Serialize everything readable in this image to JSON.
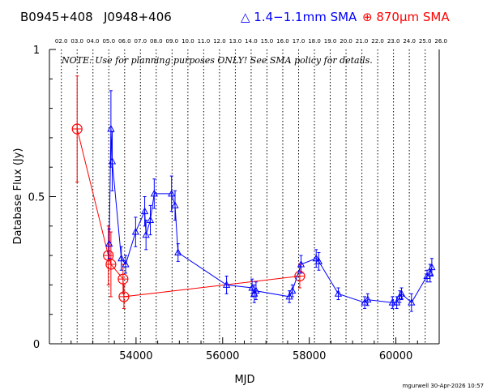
{
  "header": {
    "source1": "B0945+408",
    "source2": "J0948+406",
    "legend_blue_prefix": "△ 1.4−1.1mm SMA",
    "legend_red_prefix": "⊕ 870",
    "legend_red_mu": "μ",
    "legend_red_suffix": "m SMA"
  },
  "note": "NOTE: Use for planning purposes ONLY!  See SMA policy for details.",
  "credit": "mgurwell 30-Apr-2026 10:57",
  "colors": {
    "blue": "#0000ff",
    "red": "#ff0000",
    "axis": "#000000"
  },
  "chart_data": {
    "type": "scatter",
    "xlabel": "MJD",
    "ylabel": "Database Flux (Jy)",
    "xlim": [
      52000,
      61000
    ],
    "ylim": [
      0,
      1
    ],
    "x_ticks": [
      54000,
      56000,
      58000,
      60000
    ],
    "x_tick_labels": [
      "54000",
      "56000",
      "58000",
      "60000"
    ],
    "y_ticks": [
      0,
      0.5,
      1
    ],
    "y_tick_labels": [
      "0",
      "0.5",
      "1"
    ],
    "year_lines": [
      {
        "label": "02.0",
        "x": 52275
      },
      {
        "label": "03.0",
        "x": 52640
      },
      {
        "label": "04.0",
        "x": 53005
      },
      {
        "label": "05.0",
        "x": 53371
      },
      {
        "label": "06.0",
        "x": 53736
      },
      {
        "label": "07.0",
        "x": 54101
      },
      {
        "label": "08.0",
        "x": 54466
      },
      {
        "label": "09.0",
        "x": 54832
      },
      {
        "label": "10.0",
        "x": 55197
      },
      {
        "label": "11.0",
        "x": 55562
      },
      {
        "label": "12.0",
        "x": 55927
      },
      {
        "label": "13.0",
        "x": 56293
      },
      {
        "label": "14.0",
        "x": 56658
      },
      {
        "label": "15.0",
        "x": 57023
      },
      {
        "label": "16.0",
        "x": 57388
      },
      {
        "label": "17.0",
        "x": 57754
      },
      {
        "label": "18.0",
        "x": 58119
      },
      {
        "label": "19.0",
        "x": 58484
      },
      {
        "label": "20.0",
        "x": 58849
      },
      {
        "label": "21.0",
        "x": 59215
      },
      {
        "label": "22.0",
        "x": 59580
      },
      {
        "label": "23.0",
        "x": 59945
      },
      {
        "label": "24.0",
        "x": 60310
      },
      {
        "label": "25.0",
        "x": 60676
      },
      {
        "label": "26.0",
        "x": 61041
      }
    ],
    "series": [
      {
        "name": "1.4−1.1mm SMA",
        "color": "#0000ff",
        "marker": "triangle",
        "points": [
          {
            "x": 53380,
            "y": 0.34,
            "err": 0.05
          },
          {
            "x": 53420,
            "y": 0.73,
            "err": 0.13
          },
          {
            "x": 53450,
            "y": 0.62,
            "err": 0.1
          },
          {
            "x": 53660,
            "y": 0.29,
            "err": 0.04
          },
          {
            "x": 53760,
            "y": 0.27,
            "err": 0.03
          },
          {
            "x": 53990,
            "y": 0.38,
            "err": 0.05
          },
          {
            "x": 54200,
            "y": 0.45,
            "err": 0.05
          },
          {
            "x": 54230,
            "y": 0.37,
            "err": 0.05
          },
          {
            "x": 54330,
            "y": 0.42,
            "err": 0.05
          },
          {
            "x": 54420,
            "y": 0.51,
            "err": 0.05
          },
          {
            "x": 54820,
            "y": 0.51,
            "err": 0.06
          },
          {
            "x": 54900,
            "y": 0.47,
            "err": 0.05
          },
          {
            "x": 54970,
            "y": 0.31,
            "err": 0.03
          },
          {
            "x": 56090,
            "y": 0.2,
            "err": 0.03
          },
          {
            "x": 56680,
            "y": 0.19,
            "err": 0.03
          },
          {
            "x": 56730,
            "y": 0.17,
            "err": 0.03
          },
          {
            "x": 56770,
            "y": 0.18,
            "err": 0.03
          },
          {
            "x": 57540,
            "y": 0.16,
            "err": 0.02
          },
          {
            "x": 57610,
            "y": 0.18,
            "err": 0.02
          },
          {
            "x": 57810,
            "y": 0.27,
            "err": 0.03
          },
          {
            "x": 58160,
            "y": 0.29,
            "err": 0.03
          },
          {
            "x": 58220,
            "y": 0.28,
            "err": 0.03
          },
          {
            "x": 58670,
            "y": 0.17,
            "err": 0.02
          },
          {
            "x": 59280,
            "y": 0.14,
            "err": 0.02
          },
          {
            "x": 59350,
            "y": 0.15,
            "err": 0.02
          },
          {
            "x": 59920,
            "y": 0.14,
            "err": 0.02
          },
          {
            "x": 60020,
            "y": 0.14,
            "err": 0.02
          },
          {
            "x": 60090,
            "y": 0.16,
            "err": 0.02
          },
          {
            "x": 60130,
            "y": 0.17,
            "err": 0.02
          },
          {
            "x": 60360,
            "y": 0.14,
            "err": 0.03
          },
          {
            "x": 60720,
            "y": 0.23,
            "err": 0.02
          },
          {
            "x": 60790,
            "y": 0.24,
            "err": 0.03
          },
          {
            "x": 60830,
            "y": 0.26,
            "err": 0.03
          }
        ]
      },
      {
        "name": "870μm SMA",
        "color": "#ff0000",
        "marker": "circle-plus",
        "points": [
          {
            "x": 52640,
            "y": 0.73,
            "err": 0.18
          },
          {
            "x": 53360,
            "y": 0.3,
            "err": 0.1
          },
          {
            "x": 53420,
            "y": 0.27,
            "err": 0.11
          },
          {
            "x": 53700,
            "y": 0.22,
            "err": 0.05
          },
          {
            "x": 53720,
            "y": 0.16,
            "err": 0.04
          },
          {
            "x": 57780,
            "y": 0.23,
            "err": 0.04
          }
        ]
      }
    ]
  }
}
